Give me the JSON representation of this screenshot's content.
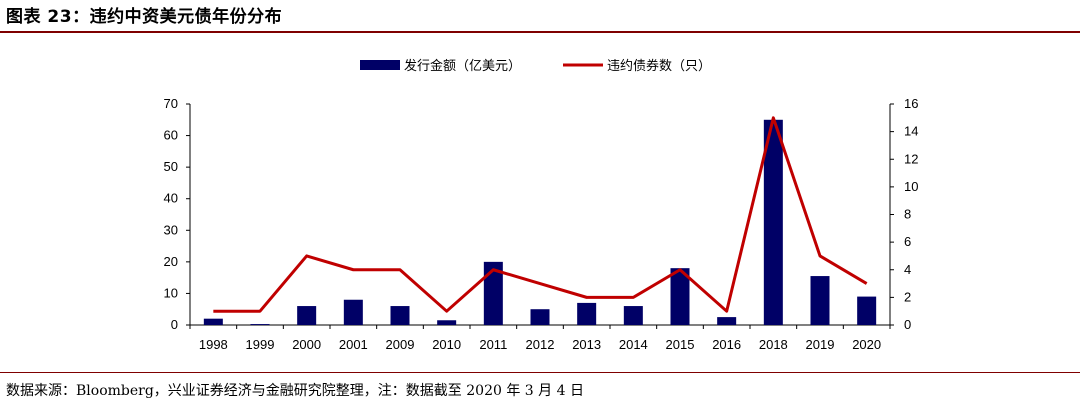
{
  "header": {
    "title": "图表 23：违约中资美元债年份分布"
  },
  "footer": {
    "source": "数据来源：Bloomberg，兴业证券经济与金融研究院整理，注：数据截至 2020 年 3 月 4 日"
  },
  "colors": {
    "bar": "#000066",
    "line": "#c00000",
    "rule": "#7f0000"
  },
  "chart_data": {
    "type": "bar",
    "categories": [
      "1998",
      "1999",
      "2000",
      "2001",
      "2009",
      "2010",
      "2011",
      "2012",
      "2013",
      "2014",
      "2015",
      "2016",
      "2018",
      "2019",
      "2020"
    ],
    "series": [
      {
        "name": "发行金额（亿美元）",
        "type": "bar",
        "axis": "left",
        "values": [
          2,
          0.3,
          6,
          8,
          6,
          1.5,
          20,
          5,
          7,
          6,
          18,
          2.5,
          65,
          15.5,
          9
        ]
      },
      {
        "name": "违约债券数（只）",
        "type": "line",
        "axis": "right",
        "values": [
          1,
          1,
          5,
          4,
          4,
          1,
          4,
          3,
          2,
          2,
          4,
          1,
          15,
          5,
          3
        ]
      }
    ],
    "left_axis": {
      "ylim": [
        0,
        70
      ],
      "ticks": [
        "0",
        "10",
        "20",
        "30",
        "40",
        "50",
        "60",
        "70"
      ]
    },
    "right_axis": {
      "ylim": [
        0,
        16
      ],
      "ticks": [
        "0",
        "2",
        "4",
        "6",
        "8",
        "10",
        "12",
        "14",
        "16"
      ]
    },
    "legend_position": "top",
    "grid": false
  }
}
